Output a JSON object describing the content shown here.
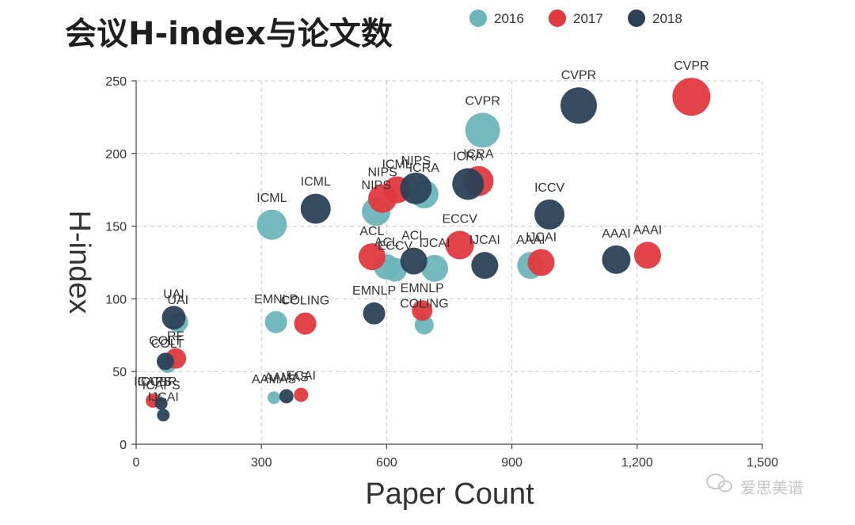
{
  "chart_data": {
    "type": "scatter",
    "title": "会议H-index与论文数",
    "xlabel": "Paper Count",
    "ylabel": "H-index",
    "xlim": [
      0,
      1500
    ],
    "ylim": [
      0,
      250
    ],
    "xticks": [
      0,
      300,
      600,
      900,
      1200,
      1500
    ],
    "xtick_labels": [
      "0",
      "300",
      "600",
      "900",
      "1,200",
      "1,500"
    ],
    "yticks": [
      0,
      50,
      100,
      150,
      200,
      250
    ],
    "ytick_labels": [
      "0",
      "50",
      "100",
      "150",
      "200",
      "250"
    ],
    "grid": true,
    "legend_position": "top",
    "series": [
      {
        "name": "2016",
        "color": "#6cb5bb",
        "points": [
          {
            "label": "CVPR",
            "x": 830,
            "y": 216,
            "size": 22
          },
          {
            "label": "ICML",
            "x": 325,
            "y": 151,
            "size": 19
          },
          {
            "label": "NIPS",
            "x": 575,
            "y": 160,
            "size": 18
          },
          {
            "label": "ICRA",
            "x": 690,
            "y": 172,
            "size": 18
          },
          {
            "label": "ACL",
            "x": 600,
            "y": 122,
            "size": 16
          },
          {
            "label": "ECCV",
            "x": 620,
            "y": 120,
            "size": 15
          },
          {
            "label": "IJCAI",
            "x": 715,
            "y": 121,
            "size": 17
          },
          {
            "label": "AAAI",
            "x": 945,
            "y": 123,
            "size": 17
          },
          {
            "label": "EMNLP",
            "x": 335,
            "y": 84,
            "size": 14
          },
          {
            "label": "COLING",
            "x": 690,
            "y": 82,
            "size": 12
          },
          {
            "label": "UAI",
            "x": 100,
            "y": 84,
            "size": 13
          },
          {
            "label": "COLT",
            "x": 75,
            "y": 55,
            "size": 11
          },
          {
            "label": "AAMAS",
            "x": 330,
            "y": 32,
            "size": 8
          },
          {
            "label": "ICCBR",
            "x": 50,
            "y": 31,
            "size": 7
          }
        ]
      },
      {
        "name": "2017",
        "color": "#e0393e",
        "points": [
          {
            "label": "CVPR",
            "x": 1330,
            "y": 239,
            "size": 24
          },
          {
            "label": "ICRA",
            "x": 820,
            "y": 181,
            "size": 19
          },
          {
            "label": "NIPS",
            "x": 590,
            "y": 169,
            "size": 18
          },
          {
            "label": "ICML",
            "x": 625,
            "y": 175,
            "size": 17
          },
          {
            "label": "ECCV",
            "x": 775,
            "y": 137,
            "size": 18
          },
          {
            "label": "ACL",
            "x": 565,
            "y": 129,
            "size": 17
          },
          {
            "label": "IJCAI",
            "x": 970,
            "y": 125,
            "size": 17
          },
          {
            "label": "AAAI",
            "x": 1225,
            "y": 130,
            "size": 17
          },
          {
            "label": "COLING",
            "x": 405,
            "y": 83,
            "size": 14
          },
          {
            "label": "EMNLP",
            "x": 685,
            "y": 92,
            "size": 13
          },
          {
            "label": "ECAI",
            "x": 395,
            "y": 34,
            "size": 9
          },
          {
            "label": "RE",
            "x": 95,
            "y": 59,
            "size": 13
          },
          {
            "label": "ICAPS",
            "x": 40,
            "y": 30,
            "size": 9
          }
        ]
      },
      {
        "name": "2018",
        "color": "#2c4157",
        "points": [
          {
            "label": "CVPR",
            "x": 1060,
            "y": 233,
            "size": 23
          },
          {
            "label": "ICML",
            "x": 430,
            "y": 162,
            "size": 19
          },
          {
            "label": "NIPS",
            "x": 670,
            "y": 176,
            "size": 20
          },
          {
            "label": "ICRA",
            "x": 795,
            "y": 179,
            "size": 20
          },
          {
            "label": "ICCV",
            "x": 990,
            "y": 158,
            "size": 19
          },
          {
            "label": "ACL",
            "x": 665,
            "y": 126,
            "size": 17
          },
          {
            "label": "IJCAI",
            "x": 835,
            "y": 123,
            "size": 17
          },
          {
            "label": "AAAI",
            "x": 1150,
            "y": 127,
            "size": 18
          },
          {
            "label": "EMNLP",
            "x": 570,
            "y": 90,
            "size": 14
          },
          {
            "label": "UAI",
            "x": 90,
            "y": 87,
            "size": 15
          },
          {
            "label": "ICAPS",
            "x": 60,
            "y": 28,
            "size": 8
          },
          {
            "label": "IJCAI",
            "x": 65,
            "y": 20,
            "size": 8
          },
          {
            "label": "AAMAS",
            "x": 360,
            "y": 33,
            "size": 9
          },
          {
            "label": "COLT",
            "x": 70,
            "y": 57,
            "size": 11
          }
        ]
      }
    ]
  },
  "watermark": "爱思美谱"
}
